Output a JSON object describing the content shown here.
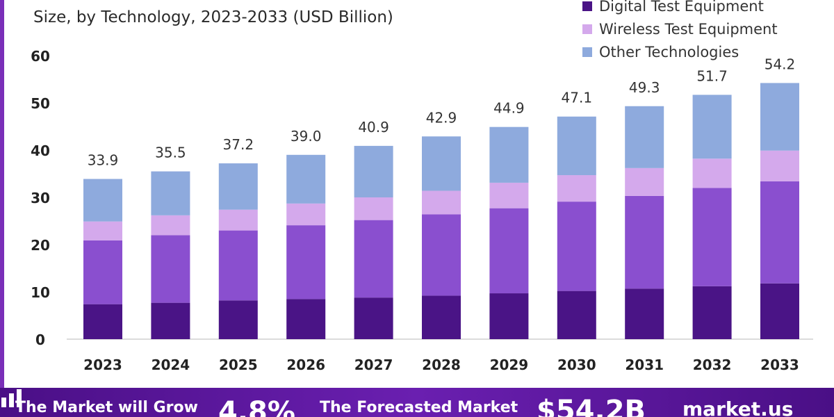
{
  "chart_data": {
    "type": "bar",
    "stacked": true,
    "subtitle": "Size, by Technology, 2023-2033 (USD Billion)",
    "categories": [
      "2023",
      "2024",
      "2025",
      "2026",
      "2027",
      "2028",
      "2029",
      "2030",
      "2031",
      "2032",
      "2033"
    ],
    "totals": [
      "33.9",
      "35.5",
      "37.2",
      "39.0",
      "40.9",
      "42.9",
      "44.9",
      "47.1",
      "49.3",
      "51.7",
      "54.2"
    ],
    "yticks": [
      "0",
      "10",
      "20",
      "30",
      "40",
      "50",
      "60"
    ],
    "ylim": [
      0,
      60
    ],
    "grid": false,
    "legend_position": "top-right",
    "series": [
      {
        "name": "",
        "color": "#4a1486",
        "values": [
          7.4,
          7.7,
          8.2,
          8.5,
          8.8,
          9.2,
          9.7,
          10.2,
          10.7,
          11.2,
          11.8
        ]
      },
      {
        "name": "Digital Test Equipment",
        "color": "#8a4fcf",
        "values": [
          13.5,
          14.3,
          14.8,
          15.6,
          16.4,
          17.2,
          18.0,
          18.9,
          19.6,
          20.8,
          21.6
        ]
      },
      {
        "name": "Wireless Test Equipment",
        "color": "#d4a9ec",
        "values": [
          4.0,
          4.2,
          4.4,
          4.6,
          4.8,
          5.0,
          5.4,
          5.6,
          5.9,
          6.2,
          6.5
        ]
      },
      {
        "name": "Other Technologies",
        "color": "#8eaadd",
        "values": [
          9.0,
          9.3,
          9.8,
          10.3,
          10.9,
          11.5,
          11.8,
          12.4,
          13.1,
          13.5,
          14.3
        ]
      }
    ]
  },
  "footer": {
    "grow_text": "The Market will Grow",
    "cagr": "4.8%",
    "forecast_text": "The Forecasted Market",
    "value": "$54.2B",
    "logo": "market.us",
    "logo_icon": "market-us-logo-icon"
  }
}
